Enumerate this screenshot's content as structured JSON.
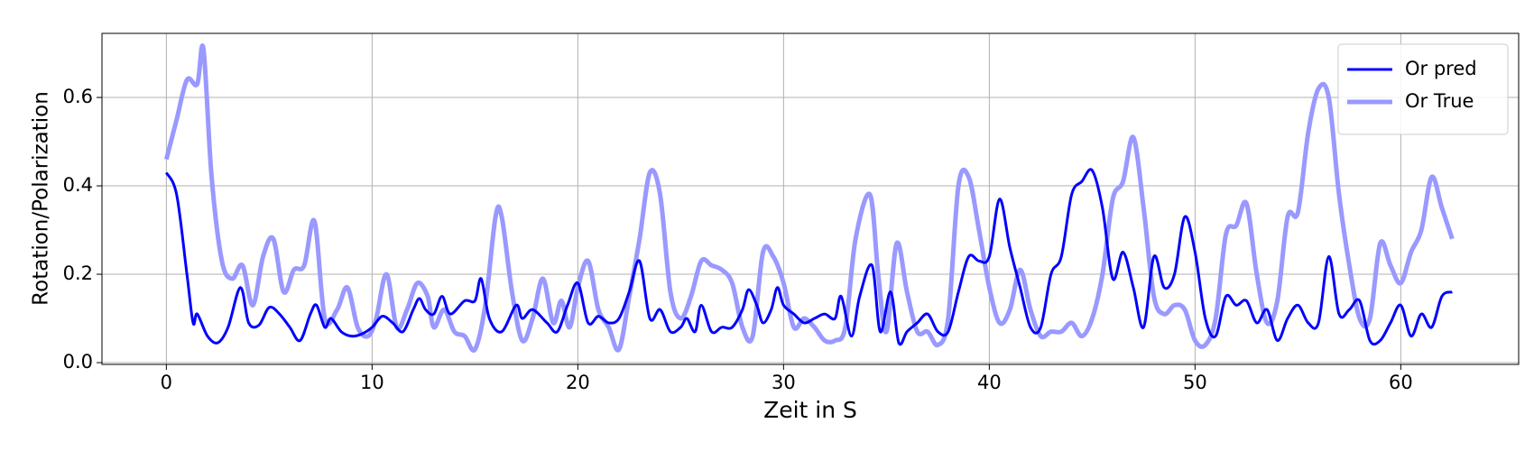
{
  "chart_data": {
    "type": "line",
    "xlabel": "Zeit in S",
    "ylabel": "Rotation/Polarization",
    "xlim": [
      -3.13,
      65.73
    ],
    "ylim": [
      -0.004,
      0.745
    ],
    "xticks": [
      0,
      10,
      20,
      30,
      40,
      50,
      60
    ],
    "yticks": [
      {
        "value": 0,
        "label": "0.0"
      },
      0.2,
      0.4,
      0.6
    ],
    "grid": true,
    "legend": "upper right",
    "series": [
      {
        "name": "Or pred",
        "color": "#0000ff",
        "x": [
          0,
          0.5,
          1,
          1.3,
          1.5,
          2,
          2.5,
          3,
          3.6,
          4,
          4.5,
          5,
          5.5,
          6,
          6.5,
          7,
          7.3,
          7.7,
          8,
          8.5,
          9,
          9.5,
          10,
          10.5,
          11,
          11.5,
          12,
          12.3,
          12.6,
          13,
          13.4,
          13.8,
          14.5,
          15,
          15.3,
          15.7,
          16.3,
          17,
          17.3,
          17.8,
          18.5,
          19,
          19.5,
          20,
          20.5,
          21,
          21.5,
          22,
          22.5,
          23,
          23.5,
          24,
          24.5,
          25,
          25.3,
          25.7,
          26,
          26.5,
          27,
          27.5,
          28,
          28.3,
          28.7,
          29,
          29.4,
          29.7,
          30,
          30.5,
          31,
          31.5,
          32,
          32.5,
          32.8,
          33.3,
          33.7,
          34.3,
          34.7,
          35.2,
          35.6,
          36,
          36.5,
          37,
          37.5,
          38,
          38.5,
          39,
          39.5,
          40,
          40.5,
          41,
          41.5,
          42,
          42.5,
          43,
          43.5,
          44,
          44.5,
          45,
          45.5,
          46,
          46.5,
          47,
          47.5,
          48,
          48.5,
          49,
          49.5,
          50,
          50.5,
          51,
          51.5,
          52,
          52.5,
          53,
          53.5,
          54,
          54.5,
          55,
          55.5,
          56,
          56.5,
          57,
          57.5,
          58,
          58.5,
          59,
          59.5,
          60,
          60.5,
          61,
          61.5,
          62,
          62.5
        ],
        "values": [
          0.43,
          0.38,
          0.2,
          0.09,
          0.11,
          0.06,
          0.045,
          0.08,
          0.17,
          0.09,
          0.085,
          0.125,
          0.11,
          0.08,
          0.05,
          0.11,
          0.13,
          0.08,
          0.1,
          0.07,
          0.06,
          0.065,
          0.08,
          0.105,
          0.09,
          0.07,
          0.12,
          0.145,
          0.12,
          0.11,
          0.15,
          0.11,
          0.14,
          0.14,
          0.19,
          0.1,
          0.07,
          0.13,
          0.1,
          0.12,
          0.09,
          0.07,
          0.13,
          0.18,
          0.09,
          0.105,
          0.09,
          0.1,
          0.16,
          0.23,
          0.1,
          0.12,
          0.07,
          0.08,
          0.1,
          0.07,
          0.13,
          0.07,
          0.08,
          0.08,
          0.12,
          0.165,
          0.13,
          0.09,
          0.12,
          0.17,
          0.13,
          0.11,
          0.09,
          0.1,
          0.11,
          0.1,
          0.15,
          0.06,
          0.15,
          0.22,
          0.07,
          0.16,
          0.045,
          0.07,
          0.09,
          0.11,
          0.07,
          0.07,
          0.16,
          0.24,
          0.23,
          0.24,
          0.37,
          0.26,
          0.17,
          0.08,
          0.08,
          0.2,
          0.24,
          0.38,
          0.41,
          0.435,
          0.35,
          0.19,
          0.25,
          0.17,
          0.08,
          0.24,
          0.17,
          0.2,
          0.33,
          0.25,
          0.1,
          0.06,
          0.15,
          0.13,
          0.14,
          0.09,
          0.12,
          0.05,
          0.1,
          0.13,
          0.09,
          0.09,
          0.24,
          0.11,
          0.12,
          0.14,
          0.05,
          0.05,
          0.09,
          0.13,
          0.06,
          0.11,
          0.08,
          0.15,
          0.16
        ]
      },
      {
        "name": "Or True",
        "color": "#9999ff",
        "x": [
          0,
          0.5,
          1,
          1.5,
          1.8,
          2.2,
          2.7,
          3.2,
          3.7,
          4.2,
          4.7,
          5.2,
          5.7,
          6.2,
          6.7,
          7.2,
          7.7,
          8.3,
          8.8,
          9.3,
          9.8,
          10.2,
          10.7,
          11.2,
          11.7,
          12.2,
          12.7,
          13,
          13.5,
          14,
          14.5,
          15,
          15.5,
          16,
          16.3,
          16.8,
          17.3,
          17.8,
          18.3,
          18.8,
          19.2,
          19.6,
          20,
          20.5,
          21,
          21.5,
          22,
          22.5,
          23,
          23.5,
          24,
          24.5,
          25,
          25.5,
          26,
          26.5,
          27,
          27.5,
          28,
          28.5,
          29,
          29.5,
          30,
          30.5,
          31,
          31.5,
          32,
          32.5,
          33,
          33.5,
          34.2,
          34.6,
          35,
          35.5,
          36,
          36.5,
          37,
          37.5,
          38,
          38.5,
          39,
          39.5,
          40,
          40.5,
          41,
          41.5,
          42,
          42.5,
          43,
          43.5,
          44,
          44.5,
          45,
          45.5,
          46,
          46.5,
          47,
          47.5,
          48,
          48.5,
          49,
          49.5,
          50,
          50.5,
          51,
          51.5,
          52,
          52.5,
          53,
          53.5,
          54,
          54.5,
          55,
          55.5,
          56,
          56.5,
          57,
          57.5,
          58,
          58.5,
          59,
          59.5,
          60,
          60.5,
          61,
          61.5,
          62,
          62.5
        ],
        "values": [
          0.46,
          0.55,
          0.64,
          0.63,
          0.71,
          0.42,
          0.23,
          0.19,
          0.22,
          0.13,
          0.24,
          0.28,
          0.16,
          0.21,
          0.22,
          0.32,
          0.1,
          0.12,
          0.17,
          0.08,
          0.06,
          0.1,
          0.2,
          0.08,
          0.12,
          0.18,
          0.15,
          0.08,
          0.12,
          0.07,
          0.06,
          0.03,
          0.13,
          0.33,
          0.33,
          0.16,
          0.05,
          0.1,
          0.19,
          0.09,
          0.14,
          0.08,
          0.17,
          0.23,
          0.12,
          0.08,
          0.03,
          0.15,
          0.28,
          0.43,
          0.38,
          0.16,
          0.1,
          0.15,
          0.23,
          0.22,
          0.21,
          0.18,
          0.08,
          0.06,
          0.25,
          0.24,
          0.18,
          0.08,
          0.1,
          0.08,
          0.05,
          0.05,
          0.08,
          0.28,
          0.38,
          0.2,
          0.07,
          0.27,
          0.16,
          0.07,
          0.07,
          0.04,
          0.1,
          0.4,
          0.42,
          0.3,
          0.17,
          0.09,
          0.12,
          0.21,
          0.12,
          0.06,
          0.07,
          0.07,
          0.09,
          0.06,
          0.1,
          0.2,
          0.37,
          0.41,
          0.51,
          0.35,
          0.15,
          0.11,
          0.13,
          0.12,
          0.05,
          0.04,
          0.1,
          0.29,
          0.31,
          0.36,
          0.2,
          0.09,
          0.14,
          0.33,
          0.34,
          0.52,
          0.62,
          0.6,
          0.38,
          0.22,
          0.1,
          0.1,
          0.27,
          0.22,
          0.18,
          0.25,
          0.3,
          0.42,
          0.35,
          0.28
        ]
      }
    ]
  }
}
